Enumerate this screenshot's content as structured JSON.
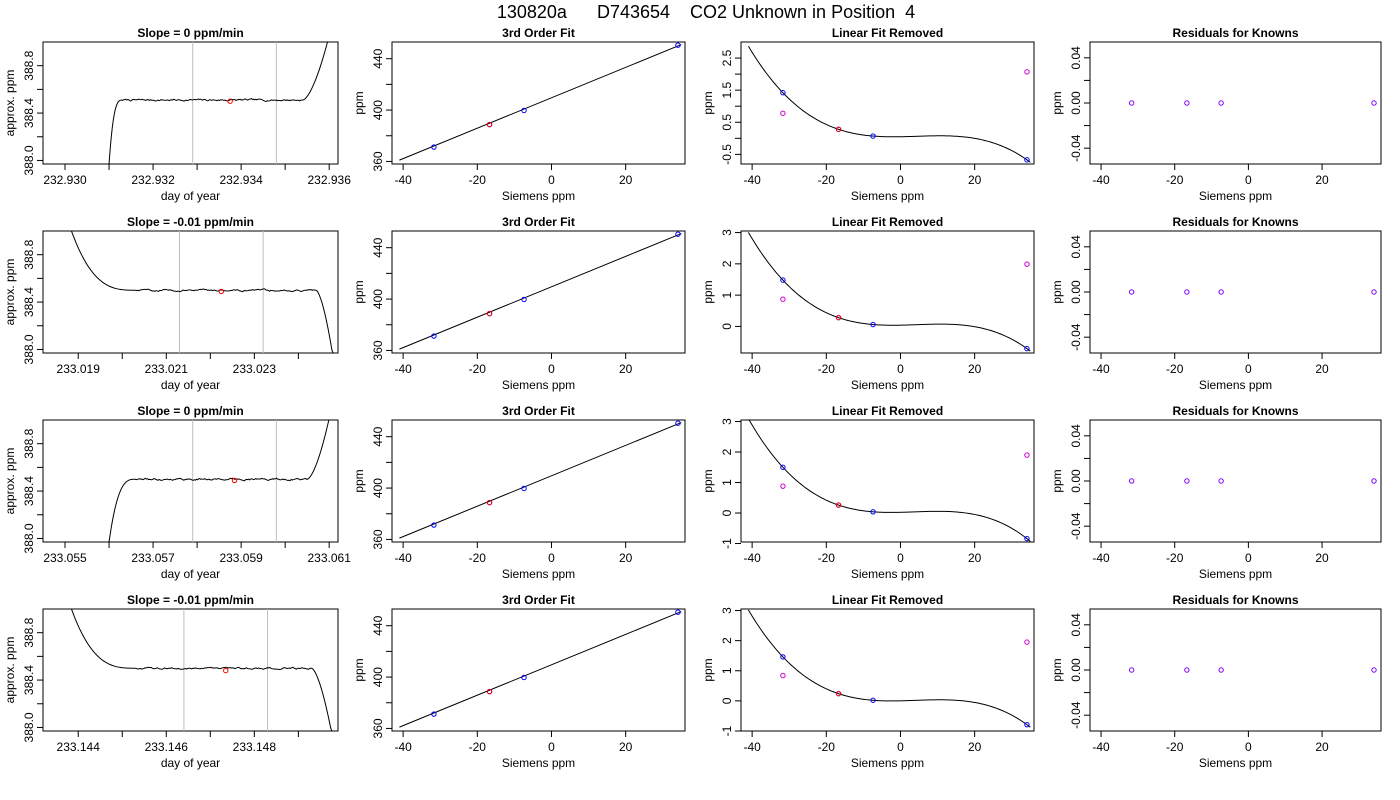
{
  "title": "130820a      D743654    CO2 Unknown in Position  4",
  "colors": {
    "trace": "#000000",
    "window_lines": "#bfbfbf",
    "mean_point": "#ff0000",
    "known_points": "#0000ff",
    "unknown_points": "#cc00cc",
    "residual_points": "#8000ff"
  },
  "chart_data": [
    {
      "panel": "time-series",
      "row": 1,
      "type": "line",
      "title": "Slope =  0  ppm/min",
      "xlabel": "day of year",
      "ylabel": "approx. ppm",
      "xlim": [
        232.9295,
        232.9362
      ],
      "ylim": [
        387.97,
        389.0
      ],
      "xticks": [
        232.93,
        232.932,
        232.934,
        232.936
      ],
      "xtick_labels": [
        "232.930",
        "232.932",
        "232.934",
        "232.936"
      ],
      "yticks": [
        388.0,
        388.4,
        388.8
      ],
      "ytick_labels": [
        "388.0",
        "388.4",
        "388.8"
      ],
      "minor_xticks": [
        232.931,
        232.933,
        232.935
      ],
      "minor_yticks": [
        388.2,
        388.6
      ],
      "trace": {
        "start": 232.931,
        "rise_end": 232.9313,
        "flat_end": 232.9354,
        "level": 388.51,
        "noise": 0.012,
        "start_value": 387.97,
        "end_value": 389.05,
        "shape": "rise-then-rise"
      },
      "window": [
        232.9329,
        232.9348
      ],
      "mean_point": {
        "x": 232.93375,
        "y": 388.5
      }
    },
    {
      "panel": "fit",
      "row": 1,
      "type": "scatter",
      "title": "3rd Order Fit",
      "xlabel": "Siemens ppm",
      "ylabel": "ppm",
      "xlim": [
        -43,
        36
      ],
      "ylim": [
        358,
        453
      ],
      "xticks": [
        -40,
        -20,
        0,
        20
      ],
      "xtick_labels": [
        "-40",
        "-20",
        "0",
        "20"
      ],
      "yticks": [
        360,
        400,
        440
      ],
      "ytick_labels": [
        "360",
        "400",
        "440"
      ],
      "minor_yticks": [
        380,
        420
      ],
      "line": {
        "x": [
          -41,
          35
        ],
        "y": [
          361,
          451
        ]
      },
      "known": {
        "x": [
          -31.7,
          -16.7,
          -7.4,
          34.1
        ],
        "y": [
          371.2,
          388.7,
          399.7,
          450.5
        ]
      },
      "unknown": {
        "x": [
          -16.7
        ],
        "y": [
          388.7
        ]
      }
    },
    {
      "panel": "residual-curve",
      "row": 1,
      "type": "scatter",
      "title": "Linear Fit Removed",
      "xlabel": "Siemens ppm",
      "ylabel": "ppm",
      "xlim": [
        -43,
        36
      ],
      "ylim": [
        -0.8,
        3.0
      ],
      "xticks": [
        -40,
        -20,
        0,
        20
      ],
      "xtick_labels": [
        "-40",
        "-20",
        "0",
        "20"
      ],
      "yticks": [
        -0.5,
        0.5,
        1.5,
        2.5
      ],
      "ytick_labels": [
        "-0.5",
        "0.5",
        "1.5",
        "2.5"
      ],
      "minor_yticks": [
        0,
        1,
        2
      ],
      "curve": {
        "a": -6.843e-05,
        "b": 0.0006632,
        "c": 0.037,
        "d": 0.0
      },
      "known": {
        "x": [
          -31.7,
          -16.7,
          -7.4,
          34.1
        ],
        "y": [
          1.42,
          0.28,
          0.07,
          -0.67
        ]
      },
      "unknown": {
        "x": [
          -16.7
        ],
        "y": [
          0.28
        ]
      },
      "extra": {
        "x": [
          -31.7,
          34.1
        ],
        "y": [
          0.78,
          2.07
        ]
      }
    },
    {
      "panel": "knowns-residual",
      "row": 1,
      "type": "scatter",
      "title": "Residuals for Knowns",
      "xlabel": "Siemens ppm",
      "ylabel": "ppm",
      "xlim": [
        -43,
        36
      ],
      "ylim": [
        -0.054,
        0.054
      ],
      "xticks": [
        -40,
        -20,
        0,
        20
      ],
      "xtick_labels": [
        "-40",
        "-20",
        "0",
        "20"
      ],
      "yticks": [
        -0.04,
        0.0,
        0.04
      ],
      "ytick_labels": [
        "-0.04",
        "0.00",
        "0.04"
      ],
      "minor_yticks": [
        -0.02,
        0.02
      ],
      "points": {
        "x": [
          -31.7,
          -16.7,
          -7.4,
          34.1
        ],
        "y": [
          0,
          0,
          0,
          0
        ]
      }
    },
    {
      "panel": "time-series",
      "row": 2,
      "type": "line",
      "title": "Slope =  -0.01  ppm/min",
      "xlabel": "day of year",
      "ylabel": "approx. ppm",
      "xlim": [
        233.0182,
        233.0249
      ],
      "ylim": [
        387.97,
        389.0
      ],
      "xticks": [
        233.019,
        233.021,
        233.023
      ],
      "xtick_labels": [
        "233.019",
        "233.021",
        "233.023"
      ],
      "yticks": [
        388.0,
        388.4,
        388.8
      ],
      "ytick_labels": [
        "388.0",
        "388.4",
        "388.8"
      ],
      "minor_xticks": [
        233.02,
        233.022,
        233.024
      ],
      "minor_yticks": [
        388.2,
        388.6
      ],
      "trace": {
        "start": 233.0188,
        "rise_end": 233.0203,
        "flat_end": 233.0244,
        "level": 388.5,
        "noise": 0.012,
        "start_value": 389.05,
        "end_value": 387.97,
        "shape": "fall-then-fall"
      },
      "window": [
        233.0213,
        233.0232
      ],
      "mean_point": {
        "x": 233.02225,
        "y": 388.49
      }
    },
    {
      "panel": "fit",
      "row": 2,
      "type": "scatter",
      "title": "3rd Order Fit",
      "xlabel": "Siemens ppm",
      "ylabel": "ppm",
      "xlim": [
        -43,
        36
      ],
      "ylim": [
        358,
        453
      ],
      "xticks": [
        -40,
        -20,
        0,
        20
      ],
      "xtick_labels": [
        "-40",
        "-20",
        "0",
        "20"
      ],
      "yticks": [
        360,
        400,
        440
      ],
      "ytick_labels": [
        "360",
        "400",
        "440"
      ],
      "minor_yticks": [
        380,
        420
      ],
      "line": {
        "x": [
          -41,
          35
        ],
        "y": [
          361,
          451
        ]
      },
      "known": {
        "x": [
          -31.7,
          -16.7,
          -7.4,
          34.1
        ],
        "y": [
          371.2,
          388.7,
          399.7,
          450.5
        ]
      },
      "unknown": {
        "x": [
          -16.7
        ],
        "y": [
          388.7
        ]
      }
    },
    {
      "panel": "residual-curve",
      "row": 2,
      "type": "scatter",
      "title": "Linear Fit Removed",
      "xlabel": "Siemens ppm",
      "ylabel": "ppm",
      "xlim": [
        -43,
        36
      ],
      "ylim": [
        -0.85,
        3.05
      ],
      "xticks": [
        -40,
        -20,
        0,
        20
      ],
      "xtick_labels": [
        "-40",
        "-20",
        "0",
        "20"
      ],
      "yticks": [
        0,
        1,
        2,
        3
      ],
      "ytick_labels": [
        "0",
        "1",
        "2",
        "3"
      ],
      "minor_yticks": [],
      "curve": {
        "a": -7.225e-05,
        "b": 0.0007107,
        "c": 0.039,
        "d": 0.0
      },
      "known": {
        "x": [
          -31.7,
          -16.7,
          -7.4,
          34.1
        ],
        "y": [
          1.48,
          0.28,
          0.06,
          -0.71
        ]
      },
      "unknown": {
        "x": [
          -16.7
        ],
        "y": [
          0.28
        ]
      },
      "extra": {
        "x": [
          -31.7,
          34.1
        ],
        "y": [
          0.87,
          1.99
        ]
      }
    },
    {
      "panel": "knowns-residual",
      "row": 2,
      "type": "scatter",
      "title": "Residuals for Knowns",
      "xlabel": "Siemens ppm",
      "ylabel": "ppm",
      "xlim": [
        -43,
        36
      ],
      "ylim": [
        -0.054,
        0.054
      ],
      "xticks": [
        -40,
        -20,
        0,
        20
      ],
      "xtick_labels": [
        "-40",
        "-20",
        "0",
        "20"
      ],
      "yticks": [
        -0.04,
        0.0,
        0.04
      ],
      "ytick_labels": [
        "-0.04",
        "0.00",
        "0.04"
      ],
      "minor_yticks": [
        -0.02,
        0.02
      ],
      "points": {
        "x": [
          -31.7,
          -16.7,
          -7.4,
          34.1
        ],
        "y": [
          0,
          0,
          0,
          0
        ]
      }
    },
    {
      "panel": "time-series",
      "row": 3,
      "type": "line",
      "title": "Slope =  0  ppm/min",
      "xlabel": "day of year",
      "ylabel": "approx. ppm",
      "xlim": [
        233.0545,
        233.0612
      ],
      "ylim": [
        387.97,
        389.0
      ],
      "xticks": [
        233.055,
        233.057,
        233.059,
        233.061
      ],
      "xtick_labels": [
        "233.055",
        "233.057",
        "233.059",
        "233.061"
      ],
      "yticks": [
        388.0,
        388.4,
        388.8
      ],
      "ytick_labels": [
        "388.0",
        "388.4",
        "388.8"
      ],
      "minor_xticks": [
        233.056,
        233.058,
        233.06
      ],
      "minor_yticks": [
        388.2,
        388.6
      ],
      "trace": {
        "start": 233.056,
        "rise_end": 233.0566,
        "flat_end": 233.0605,
        "level": 388.5,
        "noise": 0.012,
        "start_value": 387.97,
        "end_value": 389.05,
        "shape": "rise-then-rise"
      },
      "window": [
        233.0579,
        233.0598
      ],
      "mean_point": {
        "x": 233.05885,
        "y": 388.49
      }
    },
    {
      "panel": "fit",
      "row": 3,
      "type": "scatter",
      "title": "3rd Order Fit",
      "xlabel": "Siemens ppm",
      "ylabel": "ppm",
      "xlim": [
        -43,
        36
      ],
      "ylim": [
        358,
        453
      ],
      "xticks": [
        -40,
        -20,
        0,
        20
      ],
      "xtick_labels": [
        "-40",
        "-20",
        "0",
        "20"
      ],
      "yticks": [
        360,
        400,
        440
      ],
      "ytick_labels": [
        "360",
        "400",
        "440"
      ],
      "minor_yticks": [
        380,
        420
      ],
      "line": {
        "x": [
          -41,
          35
        ],
        "y": [
          361,
          451
        ]
      },
      "known": {
        "x": [
          -31.7,
          -16.7,
          -7.4,
          34.1
        ],
        "y": [
          371.2,
          388.7,
          399.7,
          450.5
        ]
      },
      "unknown": {
        "x": [
          -16.7
        ],
        "y": [
          388.7
        ]
      }
    },
    {
      "panel": "residual-curve",
      "row": 3,
      "type": "scatter",
      "title": "Linear Fit Removed",
      "xlabel": "Siemens ppm",
      "ylabel": "ppm",
      "xlim": [
        -43,
        36
      ],
      "ylim": [
        -0.95,
        3.05
      ],
      "xticks": [
        -40,
        -20,
        0,
        20
      ],
      "xtick_labels": [
        "-40",
        "-20",
        "0",
        "20"
      ],
      "yticks": [
        -1,
        0,
        1,
        2,
        3
      ],
      "ytick_labels": [
        "-1",
        "0",
        "1",
        "2",
        "3"
      ],
      "minor_yticks": [],
      "curve": {
        "a": -7.757e-05,
        "b": 0.0007422,
        "c": 0.04,
        "d": 0.0
      },
      "known": {
        "x": [
          -31.7,
          -16.7,
          -7.4,
          34.1
        ],
        "y": [
          1.5,
          0.26,
          0.04,
          -0.84
        ]
      },
      "unknown": {
        "x": [
          -16.7
        ],
        "y": [
          0.26
        ]
      },
      "extra": {
        "x": [
          -31.7,
          34.1
        ],
        "y": [
          0.88,
          1.9
        ]
      }
    },
    {
      "panel": "knowns-residual",
      "row": 3,
      "type": "scatter",
      "title": "Residuals for Knowns",
      "xlabel": "Siemens ppm",
      "ylabel": "ppm",
      "xlim": [
        -43,
        36
      ],
      "ylim": [
        -0.054,
        0.054
      ],
      "xticks": [
        -40,
        -20,
        0,
        20
      ],
      "xtick_labels": [
        "-40",
        "-20",
        "0",
        "20"
      ],
      "yticks": [
        -0.04,
        0.0,
        0.04
      ],
      "ytick_labels": [
        "-0.04",
        "0.00",
        "0.04"
      ],
      "minor_yticks": [
        -0.02,
        0.02
      ],
      "points": {
        "x": [
          -31.7,
          -16.7,
          -7.4,
          34.1
        ],
        "y": [
          0,
          0,
          0,
          0
        ]
      }
    },
    {
      "panel": "time-series",
      "row": 4,
      "type": "line",
      "title": "Slope =  -0.01  ppm/min",
      "xlabel": "day of year",
      "ylabel": "approx. ppm",
      "xlim": [
        233.1432,
        233.1499
      ],
      "ylim": [
        387.97,
        389.0
      ],
      "xticks": [
        233.144,
        233.146,
        233.148
      ],
      "xtick_labels": [
        "233.144",
        "233.146",
        "233.148"
      ],
      "yticks": [
        388.0,
        388.4,
        388.8
      ],
      "ytick_labels": [
        "388.0",
        "388.4",
        "388.8"
      ],
      "minor_xticks": [
        233.145,
        233.147,
        233.149
      ],
      "minor_yticks": [
        388.2,
        388.6
      ],
      "trace": {
        "start": 233.1438,
        "rise_end": 233.1453,
        "flat_end": 233.1493,
        "level": 388.5,
        "noise": 0.012,
        "start_value": 389.05,
        "end_value": 387.97,
        "shape": "fall-then-fall"
      },
      "window": [
        233.1464,
        233.1483
      ],
      "mean_point": {
        "x": 233.14735,
        "y": 388.48
      }
    },
    {
      "panel": "fit",
      "row": 4,
      "type": "scatter",
      "title": "3rd Order Fit",
      "xlabel": "Siemens ppm",
      "ylabel": "ppm",
      "xlim": [
        -43,
        36
      ],
      "ylim": [
        358,
        453
      ],
      "xticks": [
        -40,
        -20,
        0,
        20
      ],
      "xtick_labels": [
        "-40",
        "-20",
        "0",
        "20"
      ],
      "yticks": [
        360,
        400,
        440
      ],
      "ytick_labels": [
        "360",
        "400",
        "440"
      ],
      "minor_yticks": [
        380,
        420
      ],
      "line": {
        "x": [
          -41,
          35
        ],
        "y": [
          361,
          451
        ]
      },
      "known": {
        "x": [
          -31.7,
          -16.7,
          -7.4,
          34.1
        ],
        "y": [
          371.2,
          388.7,
          399.7,
          450.5
        ]
      },
      "unknown": {
        "x": [
          -16.7
        ],
        "y": [
          388.7
        ]
      }
    },
    {
      "panel": "residual-curve",
      "row": 4,
      "type": "scatter",
      "title": "Linear Fit Removed",
      "xlabel": "Siemens ppm",
      "ylabel": "ppm",
      "xlim": [
        -43,
        36
      ],
      "ylim": [
        -1.0,
        3.05
      ],
      "xticks": [
        -40,
        -20,
        0,
        20
      ],
      "xtick_labels": [
        "-40",
        "-20",
        "0",
        "20"
      ],
      "yticks": [
        -1,
        0,
        1,
        2,
        3
      ],
      "ytick_labels": [
        "-1",
        "0",
        "1",
        "2",
        "3"
      ],
      "minor_yticks": [],
      "curve": {
        "a": -7.225e-05,
        "b": 0.0007107,
        "c": 0.039,
        "d": 0.0
      },
      "known": {
        "x": [
          -31.7,
          -16.7,
          -7.4,
          34.1
        ],
        "y": [
          1.46,
          0.24,
          0.02,
          -0.79
        ]
      },
      "unknown": {
        "x": [
          -16.7
        ],
        "y": [
          0.24
        ]
      },
      "extra": {
        "x": [
          -31.7,
          34.1
        ],
        "y": [
          0.84,
          1.95
        ]
      }
    },
    {
      "panel": "knowns-residual",
      "row": 4,
      "type": "scatter",
      "title": "Residuals for Knowns",
      "xlabel": "Siemens ppm",
      "ylabel": "ppm",
      "xlim": [
        -43,
        36
      ],
      "ylim": [
        -0.054,
        0.054
      ],
      "xticks": [
        -40,
        -20,
        0,
        20
      ],
      "xtick_labels": [
        "-40",
        "-20",
        "0",
        "20"
      ],
      "yticks": [
        -0.04,
        0.0,
        0.04
      ],
      "ytick_labels": [
        "-0.04",
        "0.00",
        "0.04"
      ],
      "minor_yticks": [
        -0.02,
        0.02
      ],
      "points": {
        "x": [
          -31.7,
          -16.7,
          -7.4,
          34.1
        ],
        "y": [
          0,
          0,
          0,
          0
        ]
      }
    }
  ]
}
